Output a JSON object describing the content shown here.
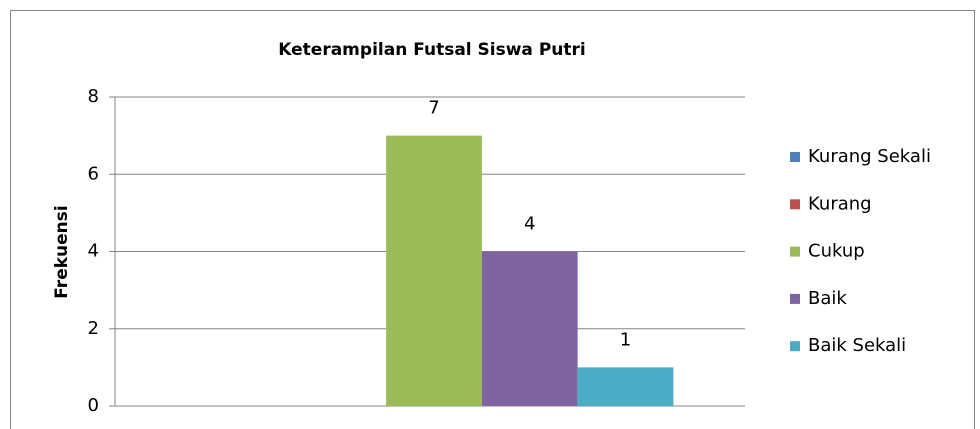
{
  "chart_data": {
    "type": "bar",
    "title": "Keterampilan Futsal Siswa Putri",
    "ylabel": "Frekuensi",
    "categories": [
      null
    ],
    "series": [
      {
        "name": "Kurang Sekali",
        "color": "#4f81bd",
        "values": [
          0
        ]
      },
      {
        "name": "Kurang",
        "color": "#c0504d",
        "values": [
          0
        ]
      },
      {
        "name": "Cukup",
        "color": "#9bbb59",
        "values": [
          7
        ]
      },
      {
        "name": "Baik",
        "color": "#8064a2",
        "values": [
          4
        ]
      },
      {
        "name": "Baik Sekali",
        "color": "#4bacc6",
        "values": [
          1
        ]
      }
    ],
    "ylim": [
      0,
      8
    ],
    "yticks": [
      0,
      2,
      4,
      6,
      8
    ],
    "grid": true,
    "legend": "right"
  }
}
